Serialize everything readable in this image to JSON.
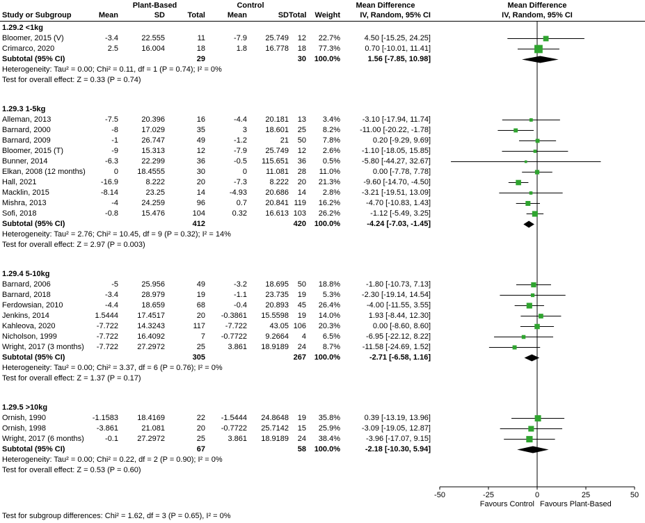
{
  "header": {
    "plant_based": "Plant-Based",
    "control": "Control",
    "mean_difference": "Mean Difference",
    "mean_difference_plot": "Mean Difference",
    "study": "Study or Subgroup",
    "mean": "Mean",
    "sd": "SD",
    "total": "Total",
    "weight": "Weight",
    "ci": "IV, Random, 95% CI",
    "ci_plot": "IV, Random, 95% CI"
  },
  "footer": {
    "subgroup_differences": "Test for subgroup differences: Chi² = 1.62, df = 3 (P = 0.65), I² = 0%"
  },
  "colors": {
    "square": "#2fa42f",
    "diamond": "#000000",
    "line": "#000000"
  },
  "chart_data": {
    "type": "scatter",
    "subtype": "forest-plot",
    "title": "",
    "xlim": [
      -50,
      50
    ],
    "x_ticks": [
      -50,
      -25,
      0,
      25,
      50
    ],
    "xlabel_left": "Favours Control",
    "xlabel_right": "Favours Plant-Based",
    "effect_measure": "Mean Difference, IV, Random, 95% CI",
    "groups": [
      {
        "label": "1.29.2 <1kg",
        "studies": [
          {
            "label": "Bloomer, 2015 (V)",
            "pb_mean": "-3.4",
            "pb_sd": "22.555",
            "pb_total": "11",
            "c_mean": "-7.9",
            "c_sd": "25.749",
            "c_total": "12",
            "weight": "22.7%",
            "ci_text": "4.50 [-15.25, 24.25]",
            "md": 4.5,
            "lo": -15.25,
            "hi": 24.25,
            "weight_pct": 22.7
          },
          {
            "label": "Crimarco, 2020",
            "pb_mean": "2.5",
            "pb_sd": "16.004",
            "pb_total": "18",
            "c_mean": "1.8",
            "c_sd": "16.778",
            "c_total": "18",
            "weight": "77.3%",
            "ci_text": "0.70 [-10.01, 11.41]",
            "md": 0.7,
            "lo": -10.01,
            "hi": 11.41,
            "weight_pct": 77.3
          }
        ],
        "subtotal": {
          "label": "Subtotal (95% CI)",
          "pb_total": "29",
          "c_total": "30",
          "weight": "100.0%",
          "ci_text": "1.56 [-7.85, 10.98]",
          "md": 1.56,
          "lo": -7.85,
          "hi": 10.98
        },
        "heterogeneity": "Heterogeneity: Tau² = 0.00; Chi² = 0.11, df = 1 (P = 0.74); I² = 0%",
        "overall_effect": "Test for overall effect: Z = 0.33 (P = 0.74)"
      },
      {
        "label": "1.29.3 1-5kg",
        "studies": [
          {
            "label": "Alleman, 2013",
            "pb_mean": "-7.5",
            "pb_sd": "20.396",
            "pb_total": "16",
            "c_mean": "-4.4",
            "c_sd": "20.181",
            "c_total": "13",
            "weight": "3.4%",
            "ci_text": "-3.10 [-17.94, 11.74]",
            "md": -3.1,
            "lo": -17.94,
            "hi": 11.74,
            "weight_pct": 3.4
          },
          {
            "label": "Barnard, 2000",
            "pb_mean": "-8",
            "pb_sd": "17.029",
            "pb_total": "35",
            "c_mean": "3",
            "c_sd": "18.601",
            "c_total": "25",
            "weight": "8.2%",
            "ci_text": "-11.00 [-20.22, -1.78]",
            "md": -11,
            "lo": -20.22,
            "hi": -1.78,
            "weight_pct": 8.2
          },
          {
            "label": "Barnard, 2009",
            "pb_mean": "-1",
            "pb_sd": "26.747",
            "pb_total": "49",
            "c_mean": "-1.2",
            "c_sd": "21",
            "c_total": "50",
            "weight": "7.8%",
            "ci_text": "0.20 [-9.29, 9.69]",
            "md": 0.2,
            "lo": -9.29,
            "hi": 9.69,
            "weight_pct": 7.8
          },
          {
            "label": "Bloomer, 2015 (T)",
            "pb_mean": "-9",
            "pb_sd": "15.313",
            "pb_total": "12",
            "c_mean": "-7.9",
            "c_sd": "25.749",
            "c_total": "12",
            "weight": "2.6%",
            "ci_text": "-1.10 [-18.05, 15.85]",
            "md": -1.1,
            "lo": -18.05,
            "hi": 15.85,
            "weight_pct": 2.6
          },
          {
            "label": "Bunner, 2014",
            "pb_mean": "-6.3",
            "pb_sd": "22.299",
            "pb_total": "36",
            "c_mean": "-0.5",
            "c_sd": "115.651",
            "c_total": "36",
            "weight": "0.5%",
            "ci_text": "-5.80 [-44.27, 32.67]",
            "md": -5.8,
            "lo": -44.27,
            "hi": 32.67,
            "weight_pct": 0.5
          },
          {
            "label": "Elkan, 2008 (12 months)",
            "pb_mean": "0",
            "pb_sd": "18.4555",
            "pb_total": "30",
            "c_mean": "0",
            "c_sd": "11.081",
            "c_total": "28",
            "weight": "11.0%",
            "ci_text": "0.00 [-7.78, 7.78]",
            "md": 0,
            "lo": -7.78,
            "hi": 7.78,
            "weight_pct": 11.0
          },
          {
            "label": "Hall, 2021",
            "pb_mean": "-16.9",
            "pb_sd": "8.222",
            "pb_total": "20",
            "c_mean": "-7.3",
            "c_sd": "8.222",
            "c_total": "20",
            "weight": "21.3%",
            "ci_text": "-9.60 [-14.70, -4.50]",
            "md": -9.6,
            "lo": -14.7,
            "hi": -4.5,
            "weight_pct": 21.3
          },
          {
            "label": "Macklin, 2015",
            "pb_mean": "-8.14",
            "pb_sd": "23.25",
            "pb_total": "14",
            "c_mean": "-4.93",
            "c_sd": "20.686",
            "c_total": "14",
            "weight": "2.8%",
            "ci_text": "-3.21 [-19.51, 13.09]",
            "md": -3.21,
            "lo": -19.51,
            "hi": 13.09,
            "weight_pct": 2.8
          },
          {
            "label": "Mishra, 2013",
            "pb_mean": "-4",
            "pb_sd": "24.259",
            "pb_total": "96",
            "c_mean": "0.7",
            "c_sd": "20.841",
            "c_total": "119",
            "weight": "16.2%",
            "ci_text": "-4.70 [-10.83, 1.43]",
            "md": -4.7,
            "lo": -10.83,
            "hi": 1.43,
            "weight_pct": 16.2
          },
          {
            "label": "Sofi, 2018",
            "pb_mean": "-0.8",
            "pb_sd": "15.476",
            "pb_total": "104",
            "c_mean": "0.32",
            "c_sd": "16.613",
            "c_total": "103",
            "weight": "26.2%",
            "ci_text": "-1.12 [-5.49, 3.25]",
            "md": -1.12,
            "lo": -5.49,
            "hi": 3.25,
            "weight_pct": 26.2
          }
        ],
        "subtotal": {
          "label": "Subtotal (95% CI)",
          "pb_total": "412",
          "c_total": "420",
          "weight": "100.0%",
          "ci_text": "-4.24 [-7.03, -1.45]",
          "md": -4.24,
          "lo": -7.03,
          "hi": -1.45
        },
        "heterogeneity": "Heterogeneity: Tau² = 2.76; Chi² = 10.45, df = 9 (P = 0.32); I² = 14%",
        "overall_effect": "Test for overall effect: Z = 2.97 (P = 0.003)"
      },
      {
        "label": "1.29.4 5-10kg",
        "studies": [
          {
            "label": "Barnard, 2006",
            "pb_mean": "-5",
            "pb_sd": "25.956",
            "pb_total": "49",
            "c_mean": "-3.2",
            "c_sd": "18.695",
            "c_total": "50",
            "weight": "18.8%",
            "ci_text": "-1.80 [-10.73, 7.13]",
            "md": -1.8,
            "lo": -10.73,
            "hi": 7.13,
            "weight_pct": 18.8
          },
          {
            "label": "Barnard, 2018",
            "pb_mean": "-3.4",
            "pb_sd": "28.979",
            "pb_total": "19",
            "c_mean": "-1.1",
            "c_sd": "23.735",
            "c_total": "19",
            "weight": "5.3%",
            "ci_text": "-2.30 [-19.14, 14.54]",
            "md": -2.3,
            "lo": -19.14,
            "hi": 14.54,
            "weight_pct": 5.3
          },
          {
            "label": "Ferdowsian, 2010",
            "pb_mean": "-4.4",
            "pb_sd": "18.659",
            "pb_total": "68",
            "c_mean": "-0.4",
            "c_sd": "20.893",
            "c_total": "45",
            "weight": "26.4%",
            "ci_text": "-4.00 [-11.55, 3.55]",
            "md": -4,
            "lo": -11.55,
            "hi": 3.55,
            "weight_pct": 26.4
          },
          {
            "label": "Jenkins, 2014",
            "pb_mean": "1.5444",
            "pb_sd": "17.4517",
            "pb_total": "20",
            "c_mean": "-0.3861",
            "c_sd": "15.5598",
            "c_total": "19",
            "weight": "14.0%",
            "ci_text": "1.93 [-8.44, 12.30]",
            "md": 1.93,
            "lo": -8.44,
            "hi": 12.3,
            "weight_pct": 14.0
          },
          {
            "label": "Kahleova, 2020",
            "pb_mean": "-7.722",
            "pb_sd": "14.3243",
            "pb_total": "117",
            "c_mean": "-7.722",
            "c_sd": "43.05",
            "c_total": "106",
            "weight": "20.3%",
            "ci_text": "0.00 [-8.60, 8.60]",
            "md": 0,
            "lo": -8.6,
            "hi": 8.6,
            "weight_pct": 20.3
          },
          {
            "label": "Nicholson, 1999",
            "pb_mean": "-7.722",
            "pb_sd": "16.4092",
            "pb_total": "7",
            "c_mean": "-0.7722",
            "c_sd": "9.2664",
            "c_total": "4",
            "weight": "6.5%",
            "ci_text": "-6.95 [-22.12, 8.22]",
            "md": -6.95,
            "lo": -22.12,
            "hi": 8.22,
            "weight_pct": 6.5
          },
          {
            "label": "Wright, 2017 (3 months)",
            "pb_mean": "-7.722",
            "pb_sd": "27.2972",
            "pb_total": "25",
            "c_mean": "3.861",
            "c_sd": "18.9189",
            "c_total": "24",
            "weight": "8.7%",
            "ci_text": "-11.58 [-24.69, 1.52]",
            "md": -11.58,
            "lo": -24.69,
            "hi": 1.52,
            "weight_pct": 8.7
          }
        ],
        "subtotal": {
          "label": "Subtotal (95% CI)",
          "pb_total": "305",
          "c_total": "267",
          "weight": "100.0%",
          "ci_text": "-2.71 [-6.58, 1.16]",
          "md": -2.71,
          "lo": -6.58,
          "hi": 1.16
        },
        "heterogeneity": "Heterogeneity: Tau² = 0.00; Chi² = 3.37, df = 6 (P = 0.76); I² = 0%",
        "overall_effect": "Test for overall effect: Z = 1.37 (P = 0.17)"
      },
      {
        "label": "1.29.5 >10kg",
        "studies": [
          {
            "label": "Ornish, 1990",
            "pb_mean": "-1.1583",
            "pb_sd": "18.4169",
            "pb_total": "22",
            "c_mean": "-1.5444",
            "c_sd": "24.8648",
            "c_total": "19",
            "weight": "35.8%",
            "ci_text": "0.39 [-13.19, 13.96]",
            "md": 0.39,
            "lo": -13.19,
            "hi": 13.96,
            "weight_pct": 35.8
          },
          {
            "label": "Ornish, 1998",
            "pb_mean": "-3.861",
            "pb_sd": "21.081",
            "pb_total": "20",
            "c_mean": "-0.7722",
            "c_sd": "25.7142",
            "c_total": "15",
            "weight": "25.9%",
            "ci_text": "-3.09 [-19.05, 12.87]",
            "md": -3.09,
            "lo": -19.05,
            "hi": 12.87,
            "weight_pct": 25.9
          },
          {
            "label": "Wright, 2017 (6 months)",
            "pb_mean": "-0.1",
            "pb_sd": "27.2972",
            "pb_total": "25",
            "c_mean": "3.861",
            "c_sd": "18.9189",
            "c_total": "24",
            "weight": "38.4%",
            "ci_text": "-3.96 [-17.07, 9.15]",
            "md": -3.96,
            "lo": -17.07,
            "hi": 9.15,
            "weight_pct": 38.4
          }
        ],
        "subtotal": {
          "label": "Subtotal (95% CI)",
          "pb_total": "67",
          "c_total": "58",
          "weight": "100.0%",
          "ci_text": "-2.18 [-10.30, 5.94]",
          "md": -2.18,
          "lo": -10.3,
          "hi": 5.94
        },
        "heterogeneity": "Heterogeneity: Tau² = 0.00; Chi² = 0.22, df = 2 (P = 0.90); I² = 0%",
        "overall_effect": "Test for overall effect: Z = 0.53 (P = 0.60)"
      }
    ]
  }
}
